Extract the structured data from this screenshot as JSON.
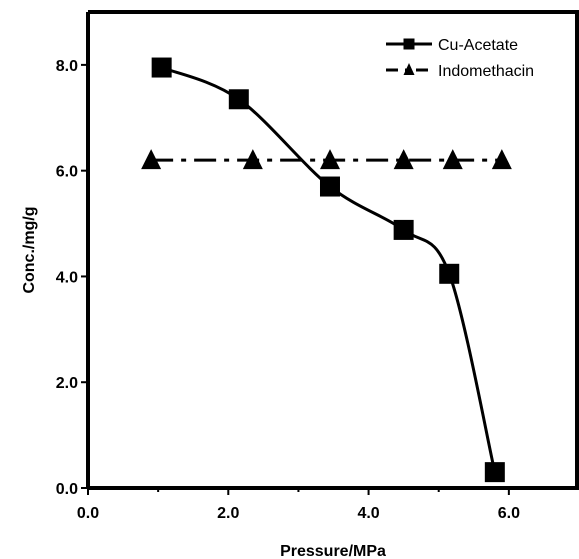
{
  "chart_data": {
    "type": "line",
    "xlabel": "Pressure/MPa",
    "ylabel": "Conc./mg/g",
    "xlim": [
      0,
      7
    ],
    "ylim": [
      0,
      9
    ],
    "x_ticks": [
      "0.0",
      "2.0",
      "4.0",
      "6.0"
    ],
    "x_tick_values": [
      0,
      2,
      4,
      6
    ],
    "y_ticks": [
      "0.0",
      "2.0",
      "4.0",
      "6.0",
      "8.0"
    ],
    "y_tick_values": [
      0,
      2,
      4,
      6,
      8
    ],
    "grid": false,
    "legend_position": "top-right",
    "series": [
      {
        "name": "Cu-Acetate",
        "marker": "square",
        "line_style": "solid",
        "points": [
          [
            1.05,
            7.95
          ],
          [
            2.15,
            7.35
          ],
          [
            3.45,
            5.7
          ],
          [
            4.5,
            4.88
          ],
          [
            5.15,
            4.05
          ],
          [
            5.8,
            0.3
          ]
        ]
      },
      {
        "name": "Indomethacin",
        "marker": "triangle",
        "line_style": "dash-dot",
        "points": [
          [
            0.9,
            6.2
          ],
          [
            2.35,
            6.2
          ],
          [
            3.45,
            6.2
          ],
          [
            4.5,
            6.2
          ],
          [
            5.2,
            6.2
          ],
          [
            5.9,
            6.2
          ]
        ]
      }
    ]
  },
  "colors": {
    "ink": "#000000",
    "background": "#ffffff"
  }
}
